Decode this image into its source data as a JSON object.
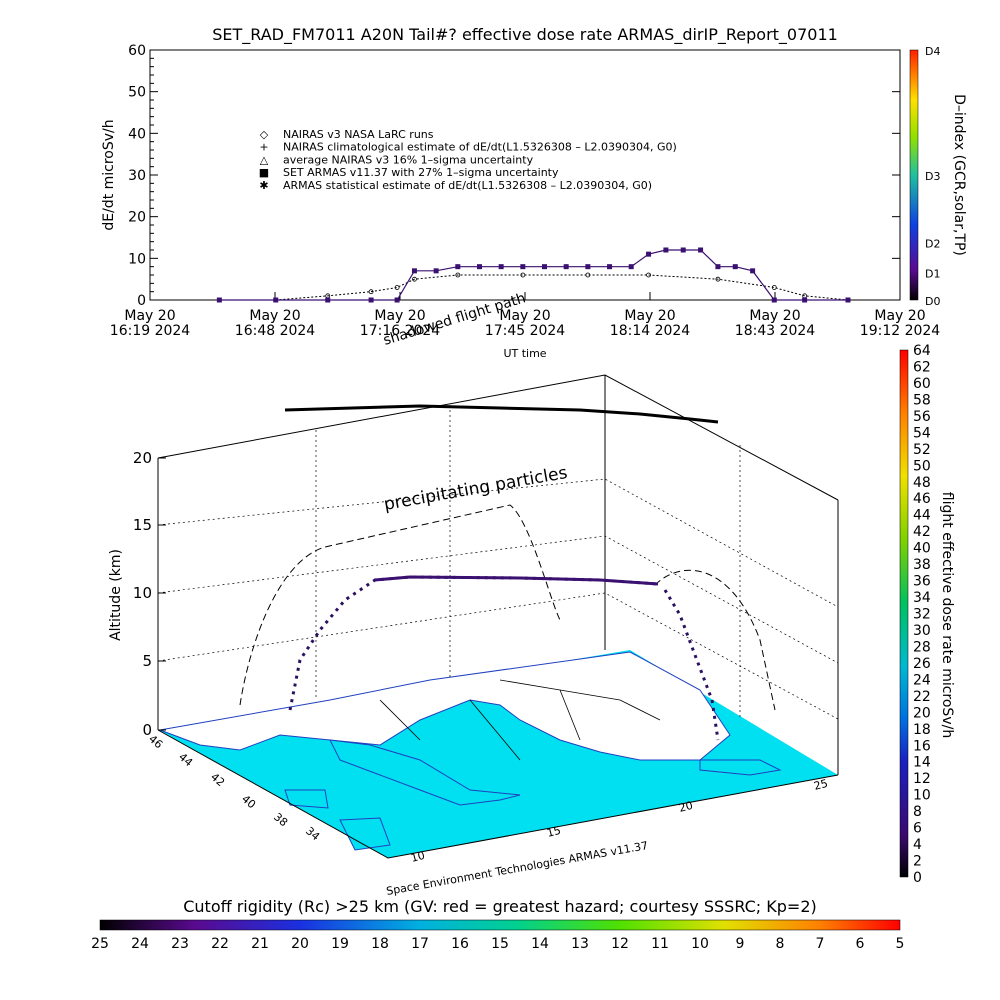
{
  "title": "SET_RAD_FM7011  A20N Tail#? effective dose rate ARMAS_dirIP_Report_07011",
  "top_chart": {
    "ylabel": "dE/dt microSv/h",
    "yticks": [
      "0",
      "10",
      "20",
      "30",
      "40",
      "50",
      "60"
    ],
    "xticks": [
      {
        "date": "May 20",
        "time": "16:19 2024"
      },
      {
        "date": "May 20",
        "time": "16:48 2024"
      },
      {
        "date": "May 20",
        "time": "17:16 2024"
      },
      {
        "date": "May 20",
        "time": "17:45 2024"
      },
      {
        "date": "May 20",
        "time": "18:14 2024"
      },
      {
        "date": "May 20",
        "time": "18:43 2024"
      },
      {
        "date": "May 20",
        "time": "19:12 2024"
      }
    ],
    "xlabel": "UT time",
    "legend": [
      {
        "symbol": "◇",
        "label": "NAIRAS v3 NASA LaRC runs"
      },
      {
        "symbol": "+",
        "label": "NAIRAS climatological estimate of dE/dt(L1.5326308 – L2.0390304, G0)"
      },
      {
        "symbol": "△",
        "label": "average NAIRAS v3 16% 1–sigma uncertainty"
      },
      {
        "symbol": "■",
        "label": "SET ARMAS v11.37 with 27% 1–sigma uncertainty"
      },
      {
        "symbol": "✱",
        "label": "ARMAS statistical estimate of dE/dt(L1.5326308 – L2.0390304, G0)"
      }
    ],
    "right_axis_label": "D–index (GCR,solar,TP)",
    "right_ticks": [
      "D0",
      "D1",
      "D2",
      "D3",
      "D4"
    ]
  },
  "chart_data": [
    {
      "type": "scatter",
      "title": "SET_RAD_FM7011  A20N Tail#? effective dose rate ARMAS_dirIP_Report_07011",
      "xlabel": "UT time",
      "ylabel": "dE/dt microSv/h",
      "ylim": [
        0,
        60
      ],
      "xlim": [
        "16:19",
        "19:12"
      ],
      "series": [
        {
          "name": "SET ARMAS v11.37 with 27% 1–sigma uncertainty",
          "x": [
            "16:35",
            "16:48",
            "17:00",
            "17:10",
            "17:16",
            "17:20",
            "17:25",
            "17:30",
            "17:35",
            "17:40",
            "17:45",
            "17:50",
            "17:55",
            "18:00",
            "18:05",
            "18:10",
            "18:14",
            "18:18",
            "18:22",
            "18:26",
            "18:30",
            "18:34",
            "18:38",
            "18:43",
            "18:50",
            "19:00"
          ],
          "y": [
            0,
            0,
            0,
            0,
            0,
            7,
            7,
            8,
            8,
            8,
            8,
            8,
            8,
            8,
            8,
            8,
            11,
            12,
            12,
            12,
            8,
            8,
            7,
            0,
            0,
            0
          ]
        },
        {
          "name": "NAIRAS v3 NASA LaRC runs",
          "x": [
            "16:35",
            "16:48",
            "17:00",
            "17:10",
            "17:16",
            "17:20",
            "17:30",
            "17:45",
            "18:00",
            "18:14",
            "18:30",
            "18:43",
            "18:50",
            "19:00"
          ],
          "y": [
            0,
            0,
            1,
            2,
            3,
            5,
            6,
            6,
            6,
            6,
            5,
            3,
            1,
            0
          ]
        }
      ]
    },
    {
      "type": "scatter",
      "title": "",
      "xlabel": "",
      "ylabel": "Altitude (km)",
      "zlim": [
        0,
        20
      ],
      "zticks": [
        0,
        5,
        10,
        15,
        20
      ],
      "lat_ticks": [
        34,
        38,
        40,
        42,
        44,
        46
      ],
      "lon_ticks": [
        10,
        15,
        20,
        25
      ],
      "series": [
        {
          "name": "flight path",
          "alt_km": [
            0.5,
            2,
            5,
            8,
            10.5,
            11.2,
            11.3,
            11.2,
            11.1,
            11,
            8,
            5,
            2,
            0.5
          ]
        }
      ]
    }
  ],
  "annotations": {
    "shadowed_flight_path": "shadowed flight path",
    "precipitating_particles": "precipitating particles",
    "credit": "Space Environment Technologies ARMAS v11.37"
  },
  "scene": {
    "zlabel": "Altitude (km)",
    "zticks": [
      "0",
      "5",
      "10",
      "15",
      "20"
    ],
    "lat_ticks": [
      "46",
      "44",
      "42",
      "40",
      "38",
      "34"
    ],
    "lon_ticks": [
      "10",
      "15",
      "20",
      "25"
    ]
  },
  "right_colorbar": {
    "label": "flight effective dose rate microSv/h",
    "ticks": [
      "0",
      "2",
      "4",
      "6",
      "8",
      "10",
      "12",
      "14",
      "16",
      "18",
      "20",
      "22",
      "24",
      "26",
      "28",
      "30",
      "32",
      "34",
      "36",
      "38",
      "40",
      "42",
      "44",
      "46",
      "48",
      "50",
      "52",
      "54",
      "56",
      "58",
      "60",
      "62",
      "64"
    ]
  },
  "bottom_colorbar": {
    "label": "Cutoff rigidity (Rc) >25 km (GV: red = greatest hazard; courtesy SSSRC; Kp=2)",
    "ticks": [
      "25",
      "24",
      "23",
      "22",
      "21",
      "20",
      "19",
      "18",
      "17",
      "16",
      "15",
      "14",
      "13",
      "12",
      "11",
      "10",
      "9",
      "8",
      "7",
      "6",
      "5"
    ]
  },
  "colors": {
    "armas": "#3a1070",
    "map_sea": "#00e0f0",
    "map_land": "#ffffff",
    "coast": "#2040c0"
  }
}
